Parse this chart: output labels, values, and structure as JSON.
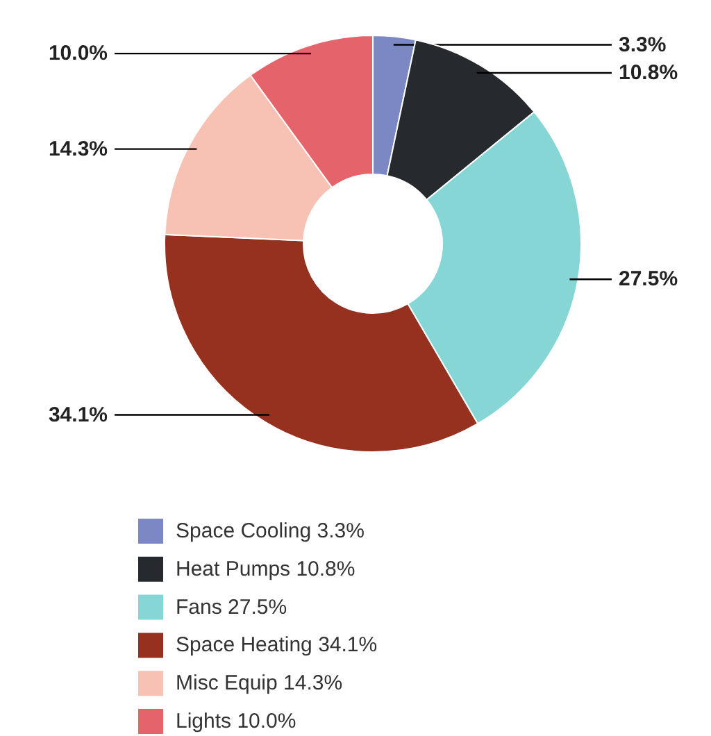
{
  "chart_data": {
    "type": "donut",
    "categories": [
      "Space Cooling",
      "Heat Pumps",
      "Fans",
      "Space Heating",
      "Misc Equip",
      "Lights"
    ],
    "values": [
      3.3,
      10.8,
      27.5,
      34.1,
      14.3,
      10.0
    ],
    "value_labels": [
      "3.3%",
      "10.8%",
      "27.5%",
      "34.1%",
      "14.3%",
      "10.0%"
    ],
    "colors": [
      "#7b88c4",
      "#262a2e",
      "#86d6d6",
      "#96301f",
      "#f7c1b4",
      "#e5636b"
    ],
    "legend": "bottom"
  }
}
